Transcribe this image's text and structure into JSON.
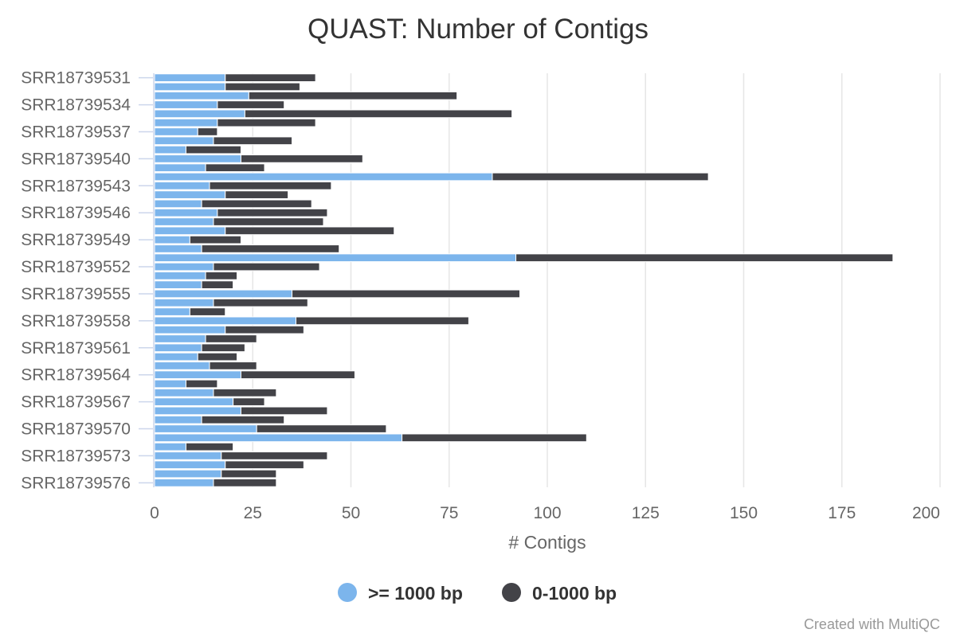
{
  "chart_data": {
    "type": "bar",
    "orientation": "horizontal",
    "stacked": true,
    "title": "QUAST: Number of Contigs",
    "xlabel": "# Contigs",
    "ylabel": "",
    "xlim": [
      0,
      200
    ],
    "x_ticks": [
      0,
      25,
      50,
      75,
      100,
      125,
      150,
      175,
      200
    ],
    "grid": true,
    "legend_position": "bottom-center",
    "credit": "Created with MultiQC",
    "categories": [
      "SRR18739531",
      "SRR18739532",
      "SRR18739533",
      "SRR18739534",
      "SRR18739535",
      "SRR18739536",
      "SRR18739537",
      "SRR18739538",
      "SRR18739539",
      "SRR18739540",
      "SRR18739541",
      "SRR18739542",
      "SRR18739543",
      "SRR18739544",
      "SRR18739545",
      "SRR18739546",
      "SRR18739547",
      "SRR18739548",
      "SRR18739549",
      "SRR18739550",
      "SRR18739551",
      "SRR18739552",
      "SRR18739553",
      "SRR18739554",
      "SRR18739555",
      "SRR18739556",
      "SRR18739557",
      "SRR18739558",
      "SRR18739559",
      "SRR18739560",
      "SRR18739561",
      "SRR18739562",
      "SRR18739563",
      "SRR18739564",
      "SRR18739565",
      "SRR18739566",
      "SRR18739567",
      "SRR18739568",
      "SRR18739569",
      "SRR18739570",
      "SRR18739571",
      "SRR18739572",
      "SRR18739573",
      "SRR18739574",
      "SRR18739575",
      "SRR18739576"
    ],
    "visible_tick_labels": [
      "SRR18739531",
      "SRR18739534",
      "SRR18739537",
      "SRR18739540",
      "SRR18739543",
      "SRR18739546",
      "SRR18739549",
      "SRR18739552",
      "SRR18739555",
      "SRR18739558",
      "SRR18739561",
      "SRR18739564",
      "SRR18739567",
      "SRR18739570",
      "SRR18739573",
      "SRR18739576"
    ],
    "series": [
      {
        "name": ">= 1000 bp",
        "color": "#7cb5ec",
        "values": [
          18,
          18,
          24,
          16,
          23,
          16,
          11,
          15,
          8,
          22,
          13,
          86,
          14,
          18,
          12,
          16,
          15,
          18,
          9,
          12,
          92,
          15,
          13,
          12,
          35,
          15,
          9,
          36,
          18,
          13,
          12,
          11,
          14,
          22,
          8,
          15,
          20,
          22,
          12,
          26,
          63,
          8,
          17,
          18,
          17,
          15
        ]
      },
      {
        "name": "0-1000 bp",
        "color": "#434348",
        "values": [
          23,
          19,
          53,
          17,
          68,
          25,
          5,
          20,
          14,
          31,
          15,
          55,
          31,
          16,
          28,
          28,
          28,
          43,
          13,
          35,
          96,
          27,
          8,
          8,
          58,
          24,
          9,
          44,
          20,
          13,
          11,
          10,
          12,
          29,
          8,
          16,
          8,
          22,
          21,
          33,
          47,
          12,
          27,
          20,
          14,
          16
        ]
      }
    ]
  }
}
